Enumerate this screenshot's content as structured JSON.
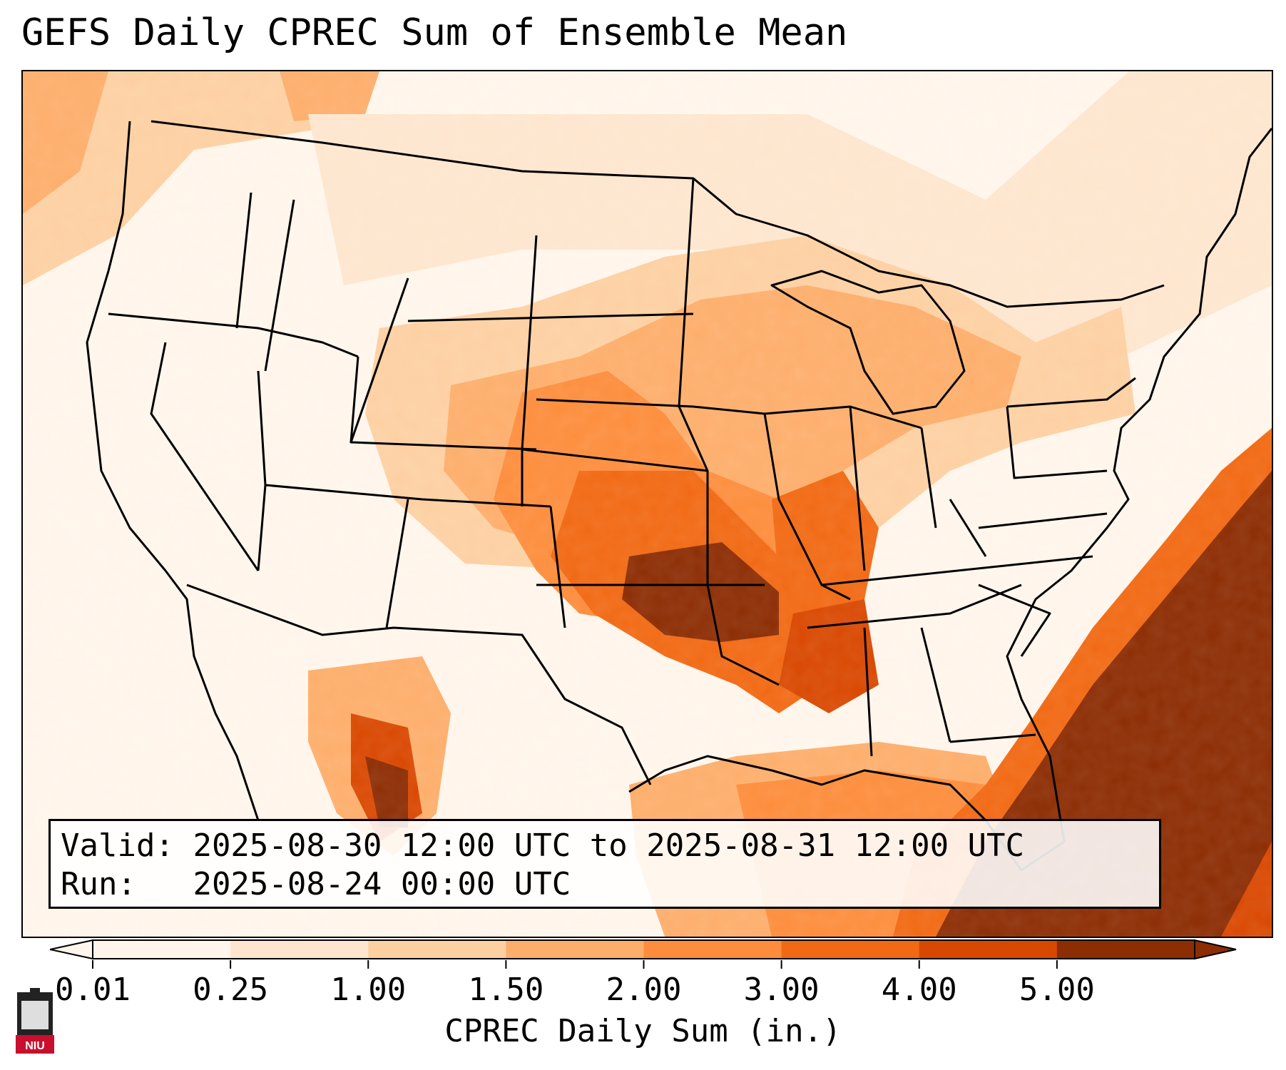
{
  "title": "GEFS Daily CPREC Sum of Ensemble Mean",
  "info": {
    "valid_label": "Valid:",
    "valid_value": "2025-08-30 12:00 UTC to 2025-08-31 12:00 UTC",
    "run_label": "Run:",
    "run_value": "2025-08-24 00:00 UTC"
  },
  "colorbar": {
    "label": "CPREC Daily Sum (in.)",
    "ticks": [
      "0.01",
      "0.25",
      "1.00",
      "1.50",
      "2.00",
      "3.00",
      "4.00",
      "5.00"
    ],
    "colors": [
      "#fff5eb",
      "#fee6ce",
      "#fdd0a2",
      "#fdae6b",
      "#fd8d3c",
      "#f16913",
      "#d94801",
      "#8c2d04"
    ],
    "extend": "both"
  },
  "logo": {
    "text": "NIU",
    "color": "#c8102e"
  }
}
